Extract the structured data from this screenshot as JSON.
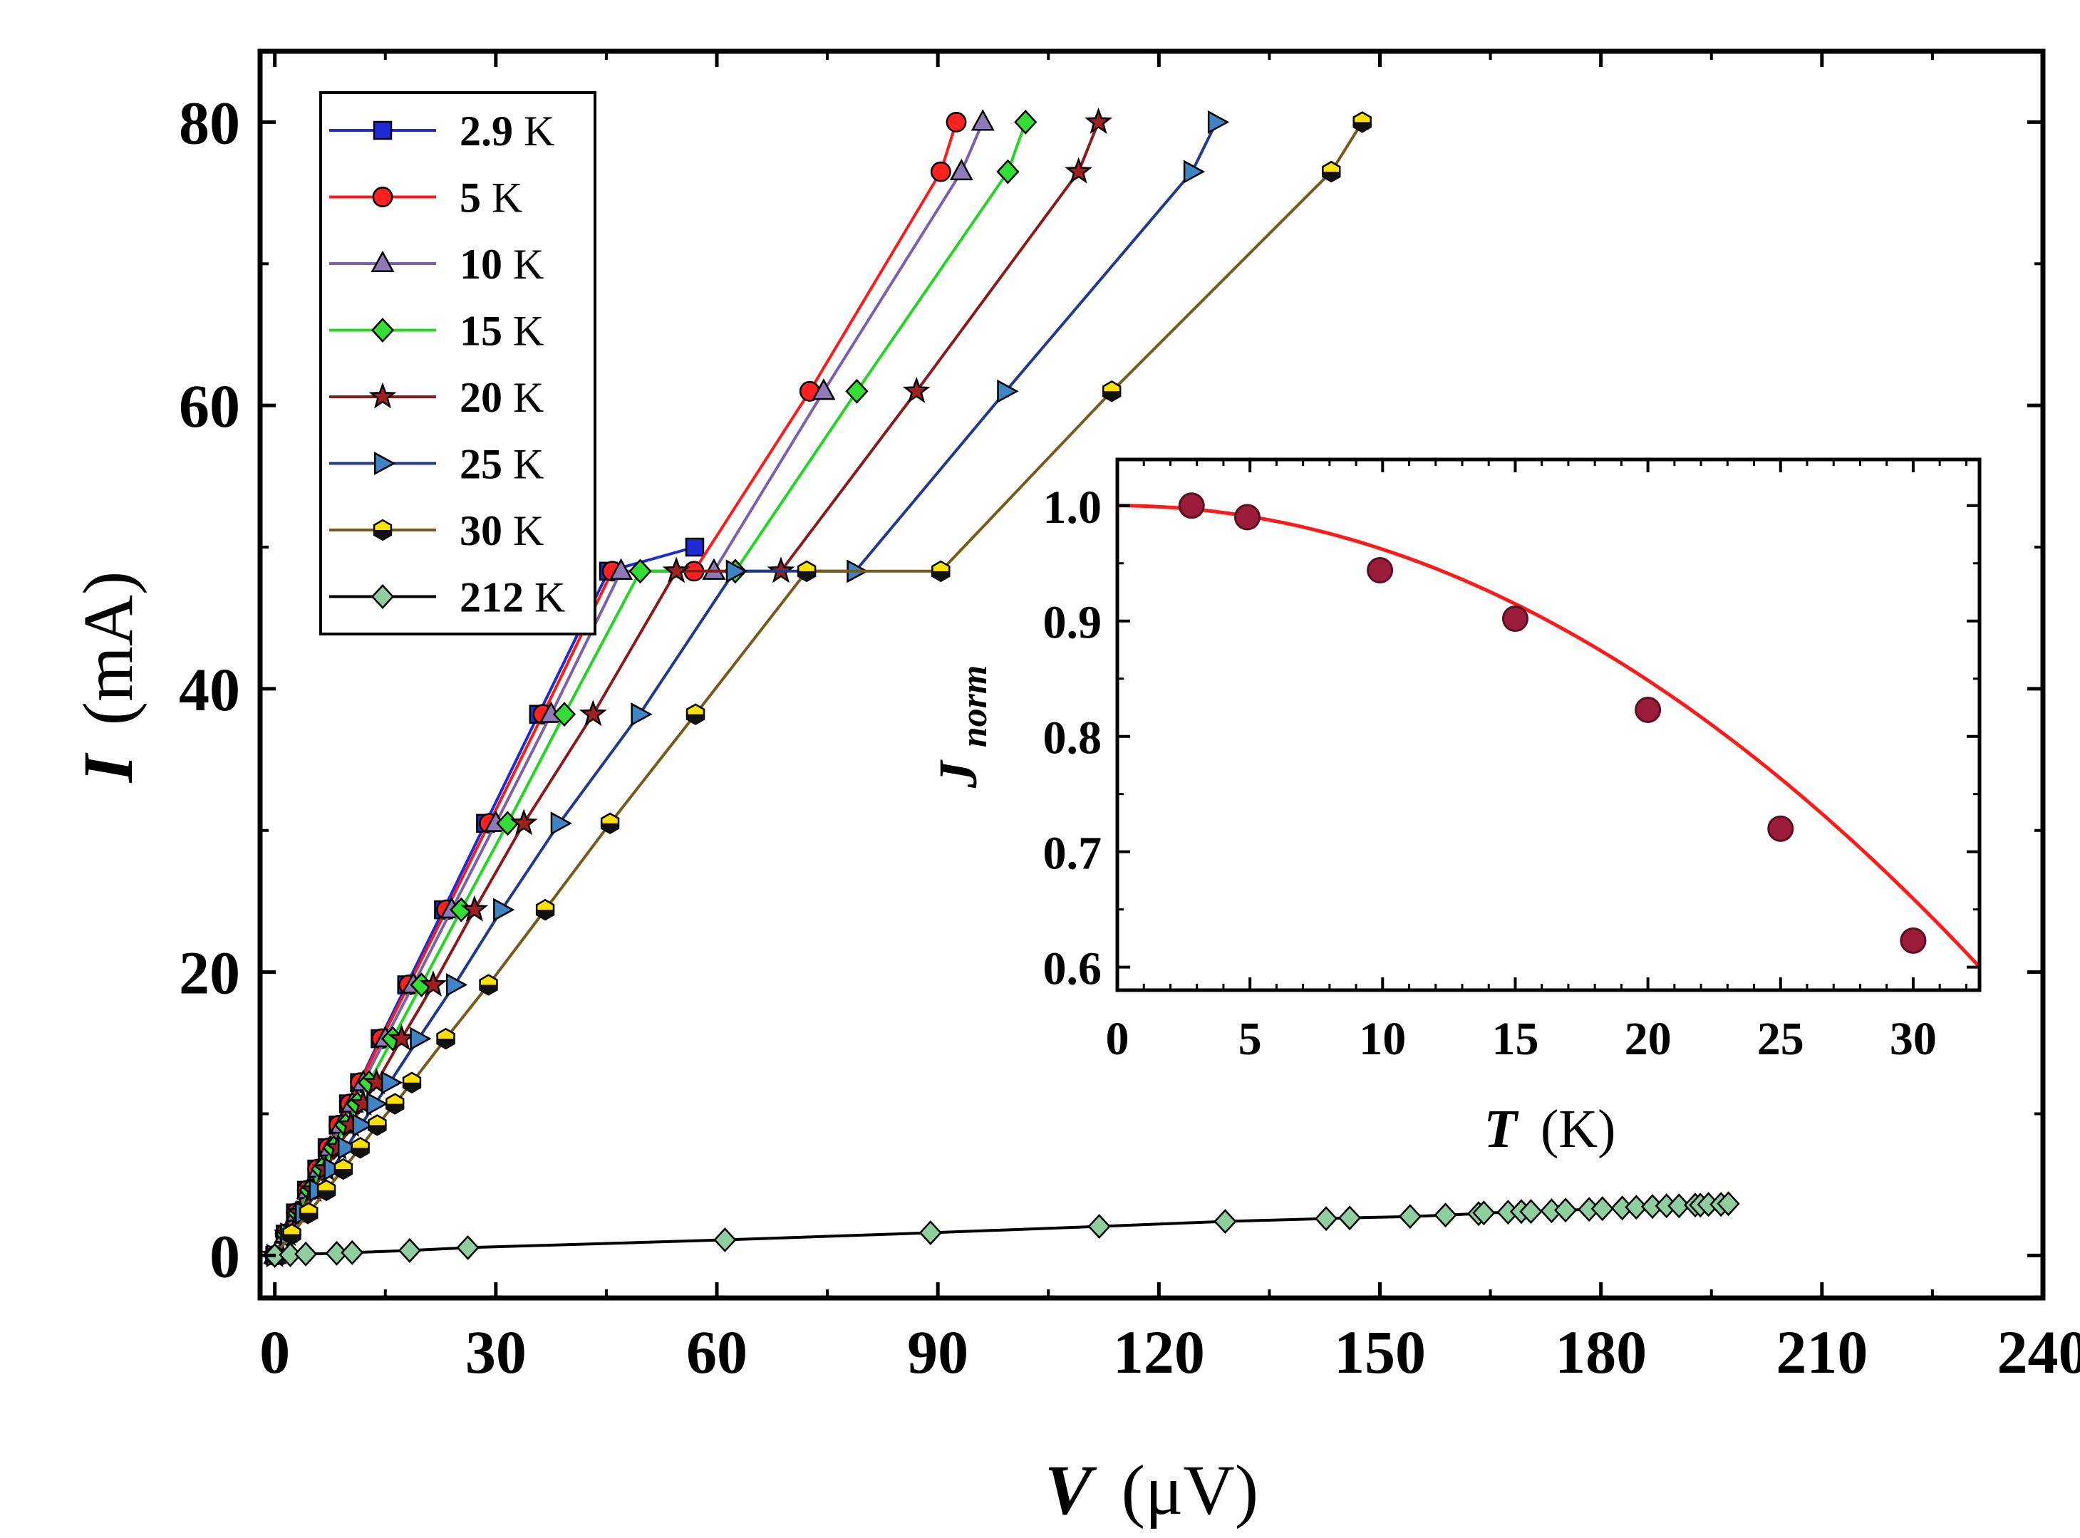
{
  "chart_data": [
    {
      "type": "line",
      "title": "",
      "xlabel": {
        "var": "V",
        "unit": "(μV)"
      },
      "ylabel": {
        "var": "I",
        "unit": "(mA)"
      },
      "xlim": [
        -2,
        240
      ],
      "ylim": [
        -3,
        85
      ],
      "x_ticks": [
        0,
        30,
        60,
        90,
        120,
        150,
        180,
        210,
        240
      ],
      "y_ticks": [
        0,
        20,
        40,
        60,
        80
      ],
      "legend_position": "top-left",
      "series": [
        {
          "name": "2.9",
          "unit": " K",
          "color": "#1f2bd6",
          "marker": "square",
          "marker_fill": "#1f2bd6",
          "points": [
            [
              0,
              0
            ],
            [
              1.4,
              1.5
            ],
            [
              2.8,
              3
            ],
            [
              4.3,
              4.6
            ],
            [
              5.7,
              6.1
            ],
            [
              7.1,
              7.6
            ],
            [
              8.6,
              9.2
            ],
            [
              10.0,
              10.7
            ],
            [
              11.5,
              12.2
            ],
            [
              14.3,
              15.3
            ],
            [
              17.9,
              19.1
            ],
            [
              22.9,
              24.4
            ],
            [
              28.6,
              30.5
            ],
            [
              35.8,
              38.2
            ],
            [
              45.3,
              48.3
            ],
            [
              57.0,
              50
            ]
          ]
        },
        {
          "name": "5",
          "unit": " K",
          "color": "#ff1a1a",
          "marker": "circle",
          "marker_fill": "#ff2020",
          "points": [
            [
              0,
              0
            ],
            [
              1.4,
              1.5
            ],
            [
              2.9,
              3
            ],
            [
              4.4,
              4.6
            ],
            [
              5.8,
              6.1
            ],
            [
              7.3,
              7.6
            ],
            [
              8.7,
              9.2
            ],
            [
              10.2,
              10.7
            ],
            [
              11.6,
              12.2
            ],
            [
              14.5,
              15.3
            ],
            [
              18.2,
              19.1
            ],
            [
              23.3,
              24.4
            ],
            [
              29.1,
              30.5
            ],
            [
              36.4,
              38.2
            ],
            [
              45.8,
              48.3
            ],
            [
              56.9,
              48.3
            ],
            [
              72.6,
              61
            ],
            [
              90.4,
              76.5
            ],
            [
              92.5,
              80
            ]
          ]
        },
        {
          "name": "10",
          "unit": " K",
          "color": "#7b5fb0",
          "marker": "triangle-up",
          "marker_fill": "#8e7ab8",
          "points": [
            [
              0,
              0
            ],
            [
              1.5,
              1.5
            ],
            [
              3.0,
              3
            ],
            [
              4.5,
              4.6
            ],
            [
              6.0,
              6.1
            ],
            [
              7.5,
              7.6
            ],
            [
              9.0,
              9.2
            ],
            [
              10.5,
              10.7
            ],
            [
              12.0,
              12.2
            ],
            [
              15.0,
              15.3
            ],
            [
              18.8,
              19.1
            ],
            [
              24.0,
              24.4
            ],
            [
              30.0,
              30.5
            ],
            [
              37.5,
              38.2
            ],
            [
              47.0,
              48.3
            ],
            [
              59.6,
              48.3
            ],
            [
              74.5,
              61
            ],
            [
              93.2,
              76.5
            ],
            [
              96.1,
              80
            ]
          ]
        },
        {
          "name": "15",
          "unit": " K",
          "color": "#22d622",
          "marker": "diamond",
          "marker_fill": "#33dd33",
          "points": [
            [
              0,
              0
            ],
            [
              1.6,
              1.5
            ],
            [
              3.2,
              3
            ],
            [
              4.8,
              4.6
            ],
            [
              6.4,
              6.1
            ],
            [
              8.0,
              7.6
            ],
            [
              9.6,
              9.2
            ],
            [
              11.2,
              10.7
            ],
            [
              12.8,
              12.2
            ],
            [
              16.0,
              15.3
            ],
            [
              19.9,
              19.1
            ],
            [
              25.3,
              24.4
            ],
            [
              31.6,
              30.5
            ],
            [
              39.3,
              38.2
            ],
            [
              49.6,
              48.3
            ],
            [
              62.5,
              48.3
            ],
            [
              79.0,
              61
            ],
            [
              99.5,
              76.5
            ],
            [
              101.9,
              80
            ]
          ]
        },
        {
          "name": "20",
          "unit": " K",
          "color": "#8b1a1a",
          "marker": "star",
          "marker_fill": "#a02020",
          "points": [
            [
              0,
              0
            ],
            [
              1.7,
              1.5
            ],
            [
              3.4,
              3
            ],
            [
              5.2,
              4.6
            ],
            [
              6.9,
              6.1
            ],
            [
              8.6,
              7.6
            ],
            [
              10.3,
              9.2
            ],
            [
              12.0,
              10.7
            ],
            [
              13.8,
              12.2
            ],
            [
              17.2,
              15.3
            ],
            [
              21.5,
              19.1
            ],
            [
              27.1,
              24.4
            ],
            [
              33.8,
              30.5
            ],
            [
              43.2,
              38.2
            ],
            [
              54.5,
              48.3
            ],
            [
              68.7,
              48.3
            ],
            [
              87.1,
              61
            ],
            [
              109.1,
              76.5
            ],
            [
              111.8,
              80
            ]
          ]
        },
        {
          "name": "25",
          "unit": " K",
          "color": "#1f3a8f",
          "marker": "triangle-right",
          "marker_fill": "#3f84c4",
          "points": [
            [
              0,
              0
            ],
            [
              1.9,
              1.5
            ],
            [
              3.9,
              3
            ],
            [
              5.8,
              4.6
            ],
            [
              7.8,
              6.1
            ],
            [
              9.7,
              7.6
            ],
            [
              11.7,
              9.2
            ],
            [
              13.6,
              10.7
            ],
            [
              15.6,
              12.2
            ],
            [
              19.5,
              15.3
            ],
            [
              24.4,
              19.1
            ],
            [
              30.8,
              24.4
            ],
            [
              38.6,
              30.5
            ],
            [
              49.5,
              38.2
            ],
            [
              62.4,
              48.3
            ],
            [
              78.8,
              48.3
            ],
            [
              99.2,
              61
            ],
            [
              124.5,
              76.5
            ],
            [
              127.8,
              80
            ]
          ]
        },
        {
          "name": "30",
          "unit": " K",
          "color": "#7a5a1a",
          "marker": "hexagon",
          "marker_fill": "#ffe000",
          "points": [
            [
              0,
              0
            ],
            [
              2.3,
              1.5
            ],
            [
              4.6,
              3
            ],
            [
              7.0,
              4.6
            ],
            [
              9.3,
              6.1
            ],
            [
              11.6,
              7.6
            ],
            [
              13.9,
              9.2
            ],
            [
              16.3,
              10.7
            ],
            [
              18.6,
              12.2
            ],
            [
              23.2,
              15.3
            ],
            [
              29.0,
              19.1
            ],
            [
              36.7,
              24.4
            ],
            [
              45.5,
              30.5
            ],
            [
              57.1,
              38.2
            ],
            [
              72.2,
              48.3
            ],
            [
              90.4,
              48.3
            ],
            [
              113.6,
              61
            ],
            [
              143.4,
              76.5
            ],
            [
              147.6,
              80
            ]
          ]
        },
        {
          "name": "212",
          "unit": " K",
          "color": "#000000",
          "marker": "diamond",
          "marker_fill": "#8fcf9f",
          "points": [
            [
              0,
              0
            ],
            [
              2.1,
              0.05
            ],
            [
              4.2,
              0.1
            ],
            [
              8.4,
              0.15
            ],
            [
              10.5,
              0.2
            ],
            [
              18.3,
              0.35
            ],
            [
              26.2,
              0.55
            ],
            [
              61.1,
              1.1
            ],
            [
              89.0,
              1.6
            ],
            [
              111.9,
              2.05
            ],
            [
              129.0,
              2.4
            ],
            [
              142.7,
              2.6
            ],
            [
              145.9,
              2.65
            ],
            [
              154.1,
              2.75
            ],
            [
              158.9,
              2.85
            ],
            [
              163.4,
              2.95
            ],
            [
              164.1,
              3
            ],
            [
              167.4,
              3.05
            ],
            [
              169.2,
              3.1
            ],
            [
              170.5,
              3.1
            ],
            [
              173.3,
              3.15
            ],
            [
              175.2,
              3.2
            ],
            [
              178.4,
              3.25
            ],
            [
              180.2,
              3.3
            ],
            [
              182.9,
              3.35
            ],
            [
              184.8,
              3.4
            ],
            [
              187.0,
              3.45
            ],
            [
              188.9,
              3.5
            ],
            [
              190.6,
              3.5
            ],
            [
              192.8,
              3.55
            ],
            [
              193.5,
              3.55
            ],
            [
              194.6,
              3.6
            ],
            [
              196.3,
              3.6
            ],
            [
              197.3,
              3.65
            ]
          ]
        }
      ]
    },
    {
      "type": "scatter",
      "title": "",
      "xlabel": {
        "var": "T",
        "unit": "(K)"
      },
      "ylabel": {
        "var": "J",
        "sub": "norm"
      },
      "xlim": [
        0,
        32.5
      ],
      "ylim": [
        0.58,
        1.04
      ],
      "x_ticks": [
        0,
        5,
        10,
        15,
        20,
        25,
        30
      ],
      "y_ticks": [
        0.6,
        0.7,
        0.8,
        0.9,
        1.0
      ],
      "y_tick_labels": [
        "0.6",
        "0.7",
        "0.8",
        "0.9",
        "1.0"
      ],
      "points": [
        [
          2.8,
          1.0
        ],
        [
          4.9,
          0.99
        ],
        [
          9.9,
          0.944
        ],
        [
          15.0,
          0.902
        ],
        [
          20.0,
          0.823
        ],
        [
          25.0,
          0.72
        ],
        [
          30.0,
          0.623
        ]
      ],
      "marker_color": "#9b1b3a",
      "fit_color": "#ff1a1a",
      "fit_curve": {
        "form": "1 - (T/Tc)^2",
        "Tc": 51.4
      }
    }
  ]
}
